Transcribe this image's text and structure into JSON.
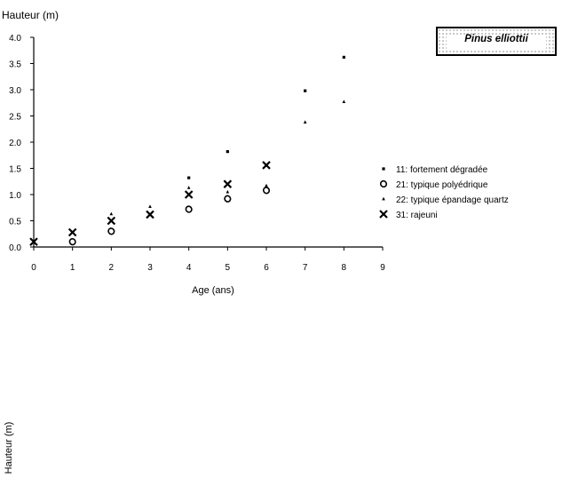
{
  "chart_data": {
    "type": "scatter",
    "title": "Pinus elliottii",
    "xlabel": "Age (ans)",
    "ylabel": "Hauteur (m)",
    "ylabel_secondary": "Hauteur (m)",
    "xlim": [
      0,
      9
    ],
    "ylim": [
      0,
      4.0
    ],
    "x_ticks": [
      "0",
      "1",
      "2",
      "3",
      "4",
      "5",
      "6",
      "7",
      "8",
      "9"
    ],
    "y_ticks": [
      "0.0",
      "0.5",
      "1.0",
      "1.5",
      "2.0",
      "2.5",
      "3.0",
      "3.5",
      "4.0"
    ],
    "grid": false,
    "legend_position": "right",
    "series": [
      {
        "name": "11: fortement dégradée",
        "marker": "dash",
        "points": [
          [
            4,
            1.32
          ],
          [
            5,
            1.82
          ],
          [
            7,
            2.98
          ],
          [
            8,
            3.62
          ]
        ]
      },
      {
        "name": "21: typique polyédrique",
        "marker": "diamond",
        "points": [
          [
            1,
            0.1
          ],
          [
            2,
            0.3
          ],
          [
            4,
            0.72
          ],
          [
            5,
            0.92
          ],
          [
            6,
            1.08
          ]
        ]
      },
      {
        "name": "22: typique épandage quartz",
        "marker": "triangle",
        "points": [
          [
            2,
            0.63
          ],
          [
            3,
            0.77
          ],
          [
            4,
            1.13
          ],
          [
            5,
            1.05
          ],
          [
            6,
            1.17
          ],
          [
            7,
            2.38
          ],
          [
            8,
            2.77
          ]
        ]
      },
      {
        "name": "31: rajeuni",
        "marker": "x",
        "points": [
          [
            0,
            0.1
          ],
          [
            1,
            0.28
          ],
          [
            2,
            0.5
          ],
          [
            3,
            0.62
          ],
          [
            4,
            1.0
          ],
          [
            5,
            1.2
          ],
          [
            6,
            1.56
          ]
        ]
      }
    ]
  }
}
